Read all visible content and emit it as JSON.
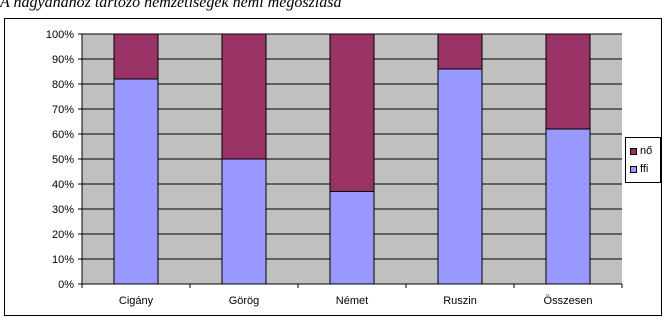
{
  "caption": "A nagyanához tartozó nemzetiségek nemi megoszlása",
  "legend": {
    "placement": "right"
  },
  "colors": {
    "plot_bg": "#c0c0c0",
    "grid": "#000000",
    "bar_bottom": "#9999ff",
    "bar_top": "#993366"
  },
  "chart_data": {
    "type": "bar",
    "stacked": true,
    "percent": true,
    "categories": [
      "Cigány",
      "Görög",
      "Német",
      "Ruszin",
      "Összesen"
    ],
    "series": [
      {
        "name": "ffi",
        "values": [
          82,
          50,
          37,
          86,
          62
        ]
      },
      {
        "name": "nő",
        "values": [
          18,
          50,
          63,
          14,
          38
        ]
      }
    ],
    "yticks": [
      "0%",
      "10%",
      "20%",
      "30%",
      "40%",
      "50%",
      "60%",
      "70%",
      "80%",
      "90%",
      "100%"
    ],
    "ylim": [
      0,
      100
    ],
    "grid": true,
    "title": "",
    "xlabel": "",
    "ylabel": ""
  }
}
